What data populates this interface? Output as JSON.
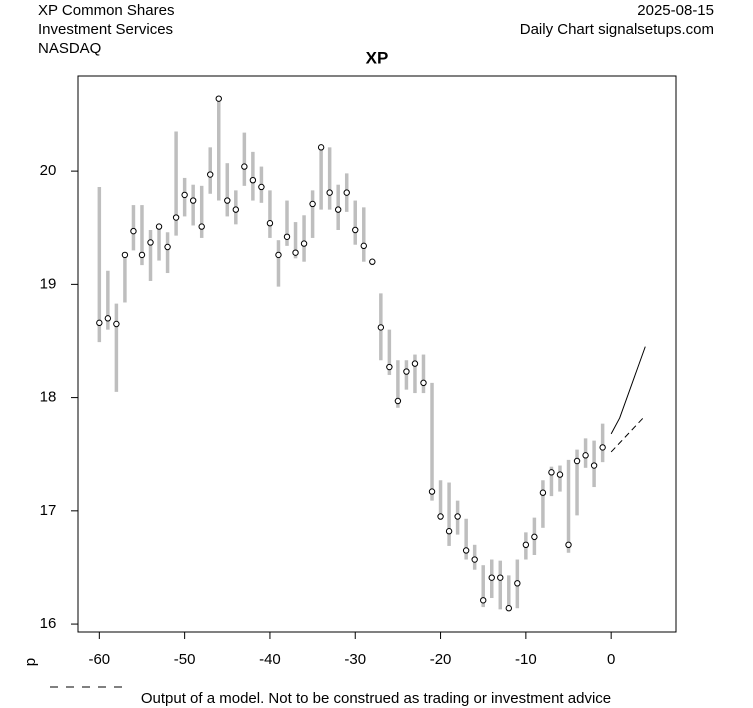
{
  "chart_data": {
    "type": "range",
    "title": "XP",
    "header_left": [
      "XP Common Shares",
      "Investment Services",
      "NASDAQ"
    ],
    "header_right": [
      "2025-08-15",
      "Daily Chart signalsetups.com"
    ],
    "footer": "Output of a model. Not to be construed as trading or investment advice",
    "side_label": "d",
    "xlim": [
      -62.5,
      7.6
    ],
    "ylim": [
      15.93,
      20.84
    ],
    "xticks": [
      -60,
      -50,
      -40,
      -30,
      -20,
      -10,
      0
    ],
    "yticks": [
      16,
      17,
      18,
      19,
      20
    ],
    "range_color": "#bebebe",
    "x": [
      -60,
      -59,
      -58,
      -57,
      -56,
      -55,
      -54,
      -53,
      -52,
      -51,
      -50,
      -49,
      -48,
      -47,
      -46,
      -45,
      -44,
      -43,
      -42,
      -41,
      -40,
      -39,
      -38,
      -37,
      -36,
      -35,
      -34,
      -33,
      -32,
      -31,
      -30,
      -29,
      -28,
      -27,
      -26,
      -25,
      -24,
      -23,
      -22,
      -21,
      -20,
      -19,
      -18,
      -17,
      -16,
      -15,
      -14,
      -13,
      -12,
      -11,
      -10,
      -9,
      -8,
      -7,
      -6,
      -5,
      -4,
      -3,
      -2,
      -1
    ],
    "close": [
      18.66,
      18.7,
      18.65,
      19.26,
      19.47,
      19.26,
      19.37,
      19.51,
      19.33,
      19.59,
      19.79,
      19.74,
      19.51,
      19.97,
      20.64,
      19.74,
      19.66,
      20.04,
      19.92,
      19.86,
      19.54,
      19.26,
      19.42,
      19.28,
      19.36,
      19.71,
      20.21,
      19.81,
      19.66,
      19.81,
      19.48,
      19.34,
      19.2,
      18.62,
      18.27,
      17.97,
      18.23,
      18.3,
      18.13,
      17.17,
      16.95,
      16.82,
      16.95,
      16.65,
      16.57,
      16.21,
      16.41,
      16.41,
      16.14,
      16.36,
      16.7,
      16.77,
      17.16,
      17.34,
      17.32,
      16.7,
      17.44,
      17.49,
      17.4,
      17.56
    ],
    "high": [
      19.86,
      19.12,
      18.83,
      19.26,
      19.7,
      19.7,
      19.48,
      19.51,
      19.46,
      20.35,
      19.94,
      19.88,
      19.87,
      20.21,
      20.64,
      20.07,
      19.83,
      20.34,
      20.17,
      20.04,
      19.83,
      19.39,
      19.74,
      19.55,
      19.61,
      19.83,
      20.21,
      20.21,
      19.88,
      19.98,
      19.74,
      19.68,
      19.2,
      18.92,
      18.6,
      18.33,
      18.33,
      18.38,
      18.38,
      18.13,
      17.27,
      17.25,
      17.09,
      16.93,
      16.7,
      16.52,
      16.57,
      16.56,
      16.43,
      16.57,
      16.81,
      16.94,
      17.27,
      17.39,
      17.4,
      17.45,
      17.54,
      17.64,
      17.62,
      17.77
    ],
    "low": [
      18.49,
      18.6,
      18.05,
      18.84,
      19.3,
      19.17,
      19.03,
      19.21,
      19.1,
      19.43,
      19.6,
      19.52,
      19.41,
      19.8,
      19.74,
      19.6,
      19.53,
      19.87,
      19.74,
      19.72,
      19.41,
      18.98,
      19.34,
      19.23,
      19.2,
      19.41,
      19.66,
      19.66,
      19.48,
      19.64,
      19.35,
      19.2,
      19.17,
      18.33,
      18.2,
      17.91,
      18.07,
      18.04,
      18.04,
      17.09,
      16.92,
      16.69,
      16.79,
      16.57,
      16.48,
      16.15,
      16.23,
      16.13,
      16.12,
      16.14,
      16.57,
      16.61,
      16.85,
      17.13,
      17.17,
      16.63,
      16.96,
      17.38,
      17.21,
      17.43
    ],
    "forecast": [
      {
        "style": "solid",
        "x": [
          0,
          1,
          4
        ],
        "values": [
          17.68,
          17.82,
          18.45
        ]
      },
      {
        "style": "dashed",
        "x": [
          0,
          1,
          4
        ],
        "values": [
          17.52,
          17.6,
          17.84
        ]
      }
    ]
  }
}
